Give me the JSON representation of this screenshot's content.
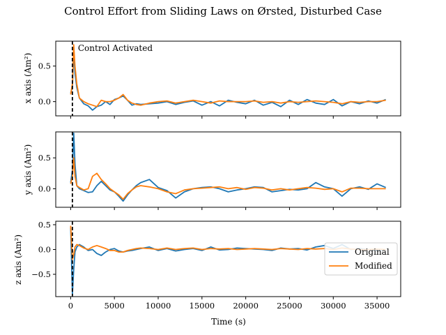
{
  "figure": {
    "title": "Control Effort from Sliding Laws on Ørsted, Disturbed Case",
    "xlabel": "Time (s)",
    "annotation": "Control Activated",
    "legend": [
      "Original",
      "Modified"
    ]
  },
  "colors": {
    "original": "#1f77b4",
    "modified": "#ff7f0e",
    "activation_line": "#000000"
  },
  "chart_data": [
    {
      "type": "line",
      "ylabel": "x axis (Am²)",
      "xlim": [
        -1700,
        37700
      ],
      "ylim": [
        -0.2,
        0.85
      ],
      "yticks": [
        0.0,
        0.5
      ],
      "ytick_labels": [
        "0.0",
        "0.5"
      ],
      "xticks": [
        0,
        5000,
        10000,
        15000,
        20000,
        25000,
        30000,
        35000
      ],
      "activation_x": 200,
      "annotation": "Control Activated",
      "series": [
        {
          "name": "Original",
          "x": [
            0,
            200,
            350,
            500,
            700,
            1000,
            1500,
            2000,
            2500,
            3000,
            3500,
            4000,
            4500,
            5000,
            5500,
            6000,
            6500,
            7000,
            7500,
            8000,
            9000,
            10000,
            11000,
            12000,
            13000,
            14000,
            15000,
            16000,
            17000,
            18000,
            19000,
            20000,
            21000,
            22000,
            23000,
            24000,
            25000,
            26000,
            27000,
            28000,
            29000,
            30000,
            31000,
            32000,
            33000,
            34000,
            35000,
            36000
          ],
          "y": [
            0.12,
            0.2,
            0.7,
            0.4,
            0.2,
            0.05,
            -0.03,
            -0.06,
            -0.12,
            -0.07,
            -0.05,
            0.0,
            -0.04,
            0.03,
            0.05,
            0.08,
            0.02,
            -0.05,
            -0.03,
            -0.04,
            -0.03,
            -0.02,
            0.0,
            -0.04,
            -0.01,
            0.01,
            -0.05,
            0.0,
            -0.06,
            0.02,
            -0.01,
            -0.03,
            0.02,
            -0.05,
            -0.01,
            -0.07,
            0.02,
            -0.04,
            0.03,
            -0.02,
            -0.04,
            0.03,
            -0.06,
            0.0,
            -0.03,
            0.01,
            -0.02,
            0.03
          ]
        },
        {
          "name": "Modified",
          "x": [
            0,
            200,
            350,
            500,
            700,
            1000,
            1500,
            2000,
            2500,
            3000,
            3500,
            4000,
            4500,
            5000,
            5500,
            6000,
            6500,
            7000,
            7500,
            8000,
            9000,
            10000,
            11000,
            12000,
            13000,
            14000,
            15000,
            16000,
            17000,
            18000,
            19000,
            20000,
            21000,
            22000,
            23000,
            24000,
            25000,
            26000,
            27000,
            28000,
            29000,
            30000,
            31000,
            32000,
            33000,
            34000,
            35000,
            36000
          ],
          "y": [
            0.1,
            0.25,
            0.8,
            0.5,
            0.25,
            0.05,
            0.0,
            -0.03,
            -0.05,
            -0.07,
            0.02,
            0.0,
            0.0,
            0.02,
            0.05,
            0.1,
            0.02,
            -0.02,
            -0.04,
            -0.05,
            -0.02,
            0.0,
            0.01,
            -0.02,
            0.0,
            0.02,
            0.0,
            -0.02,
            0.01,
            0.0,
            0.0,
            0.0,
            0.01,
            -0.01,
            0.0,
            -0.02,
            0.0,
            -0.01,
            0.0,
            0.01,
            0.0,
            -0.01,
            -0.03,
            0.0,
            -0.01,
            0.0,
            0.0,
            0.02
          ]
        }
      ]
    },
    {
      "type": "line",
      "ylabel": "y axis (Am²)",
      "xlim": [
        -1700,
        37700
      ],
      "ylim": [
        -0.3,
        0.92
      ],
      "yticks": [
        0.0,
        0.5
      ],
      "ytick_labels": [
        "0.0",
        "0.5"
      ],
      "xticks": [
        0,
        5000,
        10000,
        15000,
        20000,
        25000,
        30000,
        35000
      ],
      "activation_x": 200,
      "series": [
        {
          "name": "Original",
          "x": [
            0,
            200,
            350,
            500,
            700,
            1000,
            1500,
            2000,
            2500,
            3000,
            3500,
            4000,
            4500,
            5000,
            5500,
            6000,
            6500,
            7000,
            7500,
            8000,
            9000,
            10000,
            11000,
            12000,
            13000,
            14000,
            15000,
            16000,
            17000,
            18000,
            19000,
            20000,
            21000,
            22000,
            23000,
            24000,
            25000,
            26000,
            27000,
            28000,
            29000,
            30000,
            31000,
            32000,
            33000,
            34000,
            35000,
            36000
          ],
          "y": [
            0.1,
            0.3,
            0.9,
            0.4,
            0.05,
            0.0,
            -0.03,
            -0.06,
            -0.05,
            0.05,
            0.12,
            0.05,
            -0.02,
            -0.05,
            -0.12,
            -0.2,
            -0.1,
            -0.02,
            0.05,
            0.1,
            0.15,
            0.02,
            -0.03,
            -0.15,
            -0.05,
            0.0,
            0.02,
            0.03,
            0.0,
            -0.05,
            -0.02,
            0.0,
            0.03,
            0.02,
            -0.05,
            -0.03,
            -0.01,
            -0.02,
            0.0,
            0.1,
            0.03,
            0.0,
            -0.12,
            0.0,
            0.03,
            -0.01,
            0.08,
            0.02
          ]
        },
        {
          "name": "Modified",
          "x": [
            0,
            200,
            350,
            500,
            700,
            1000,
            1500,
            2000,
            2500,
            3000,
            3500,
            4000,
            4500,
            5000,
            5500,
            6000,
            6500,
            7000,
            7500,
            8000,
            9000,
            10000,
            11000,
            12000,
            13000,
            14000,
            15000,
            16000,
            17000,
            18000,
            19000,
            20000,
            21000,
            22000,
            23000,
            24000,
            25000,
            26000,
            27000,
            28000,
            29000,
            30000,
            31000,
            32000,
            33000,
            34000,
            35000,
            36000
          ],
          "y": [
            0.08,
            0.2,
            0.5,
            0.2,
            0.05,
            0.02,
            -0.02,
            0.0,
            0.2,
            0.25,
            0.15,
            0.08,
            0.0,
            -0.05,
            -0.1,
            -0.17,
            -0.08,
            -0.02,
            0.03,
            0.05,
            0.03,
            0.0,
            -0.05,
            -0.08,
            -0.02,
            0.0,
            0.01,
            0.02,
            0.03,
            0.0,
            0.02,
            -0.01,
            0.02,
            0.01,
            -0.02,
            0.0,
            -0.02,
            0.0,
            0.02,
            0.01,
            -0.01,
            0.0,
            -0.05,
            0.01,
            0.01,
            0.0,
            0.0,
            0.0
          ]
        }
      ]
    },
    {
      "type": "line",
      "ylabel": "z axis (Am²)",
      "xlim": [
        -1700,
        37700
      ],
      "ylim": [
        -0.95,
        0.57
      ],
      "yticks": [
        -0.5,
        0.0,
        0.5
      ],
      "ytick_labels": [
        "−0.5",
        "0.0",
        "0.5"
      ],
      "xticks": [
        0,
        5000,
        10000,
        15000,
        20000,
        25000,
        30000,
        35000
      ],
      "xtick_labels": [
        "0",
        "5000",
        "10000",
        "15000",
        "20000",
        "25000",
        "30000",
        "35000"
      ],
      "xlabel": "Time (s)",
      "activation_x": 200,
      "legend_position": "right",
      "series": [
        {
          "name": "Original",
          "x": [
            0,
            200,
            350,
            500,
            700,
            1000,
            1500,
            2000,
            2500,
            3000,
            3500,
            4000,
            4500,
            5000,
            5500,
            6000,
            6500,
            7000,
            7500,
            8000,
            9000,
            10000,
            11000,
            12000,
            13000,
            14000,
            15000,
            16000,
            17000,
            18000,
            19000,
            20000,
            21000,
            22000,
            23000,
            24000,
            25000,
            26000,
            27000,
            28000,
            29000,
            30000,
            31000,
            32000,
            33000,
            34000,
            35000,
            36000
          ],
          "y": [
            0.45,
            -0.9,
            -0.4,
            -0.05,
            0.05,
            0.1,
            0.05,
            -0.02,
            0.0,
            -0.08,
            -0.12,
            -0.05,
            0.0,
            0.02,
            -0.03,
            -0.05,
            -0.03,
            -0.02,
            0.0,
            0.02,
            0.05,
            -0.02,
            0.02,
            -0.03,
            0.0,
            0.02,
            -0.02,
            0.05,
            -0.01,
            0.0,
            0.03,
            0.02,
            0.01,
            0.0,
            -0.02,
            0.03,
            0.01,
            0.02,
            -0.01,
            0.05,
            0.08,
            0.02,
            0.1,
            0.0,
            0.02,
            0.0,
            -0.02,
            0.0
          ]
        },
        {
          "name": "Modified",
          "x": [
            0,
            200,
            350,
            500,
            700,
            1000,
            1500,
            2000,
            2500,
            3000,
            3500,
            4000,
            4500,
            5000,
            5500,
            6000,
            6500,
            7000,
            7500,
            8000,
            9000,
            10000,
            11000,
            12000,
            13000,
            14000,
            15000,
            16000,
            17000,
            18000,
            19000,
            20000,
            21000,
            22000,
            23000,
            24000,
            25000,
            26000,
            27000,
            28000,
            29000,
            30000,
            31000,
            32000,
            33000,
            34000,
            35000,
            36000
          ],
          "y": [
            0.48,
            -0.2,
            -0.1,
            0.05,
            0.1,
            0.08,
            0.03,
            0.0,
            0.05,
            0.08,
            0.05,
            0.02,
            -0.02,
            -0.02,
            -0.05,
            -0.05,
            -0.02,
            0.0,
            0.02,
            0.03,
            0.02,
            0.0,
            0.03,
            0.0,
            0.02,
            0.03,
            0.0,
            0.02,
            0.01,
            0.02,
            0.0,
            0.01,
            0.02,
            0.01,
            0.0,
            0.02,
            0.01,
            0.0,
            0.02,
            0.01,
            0.02,
            0.0,
            0.03,
            0.01,
            0.0,
            0.0,
            0.01,
            0.0
          ]
        }
      ]
    }
  ]
}
